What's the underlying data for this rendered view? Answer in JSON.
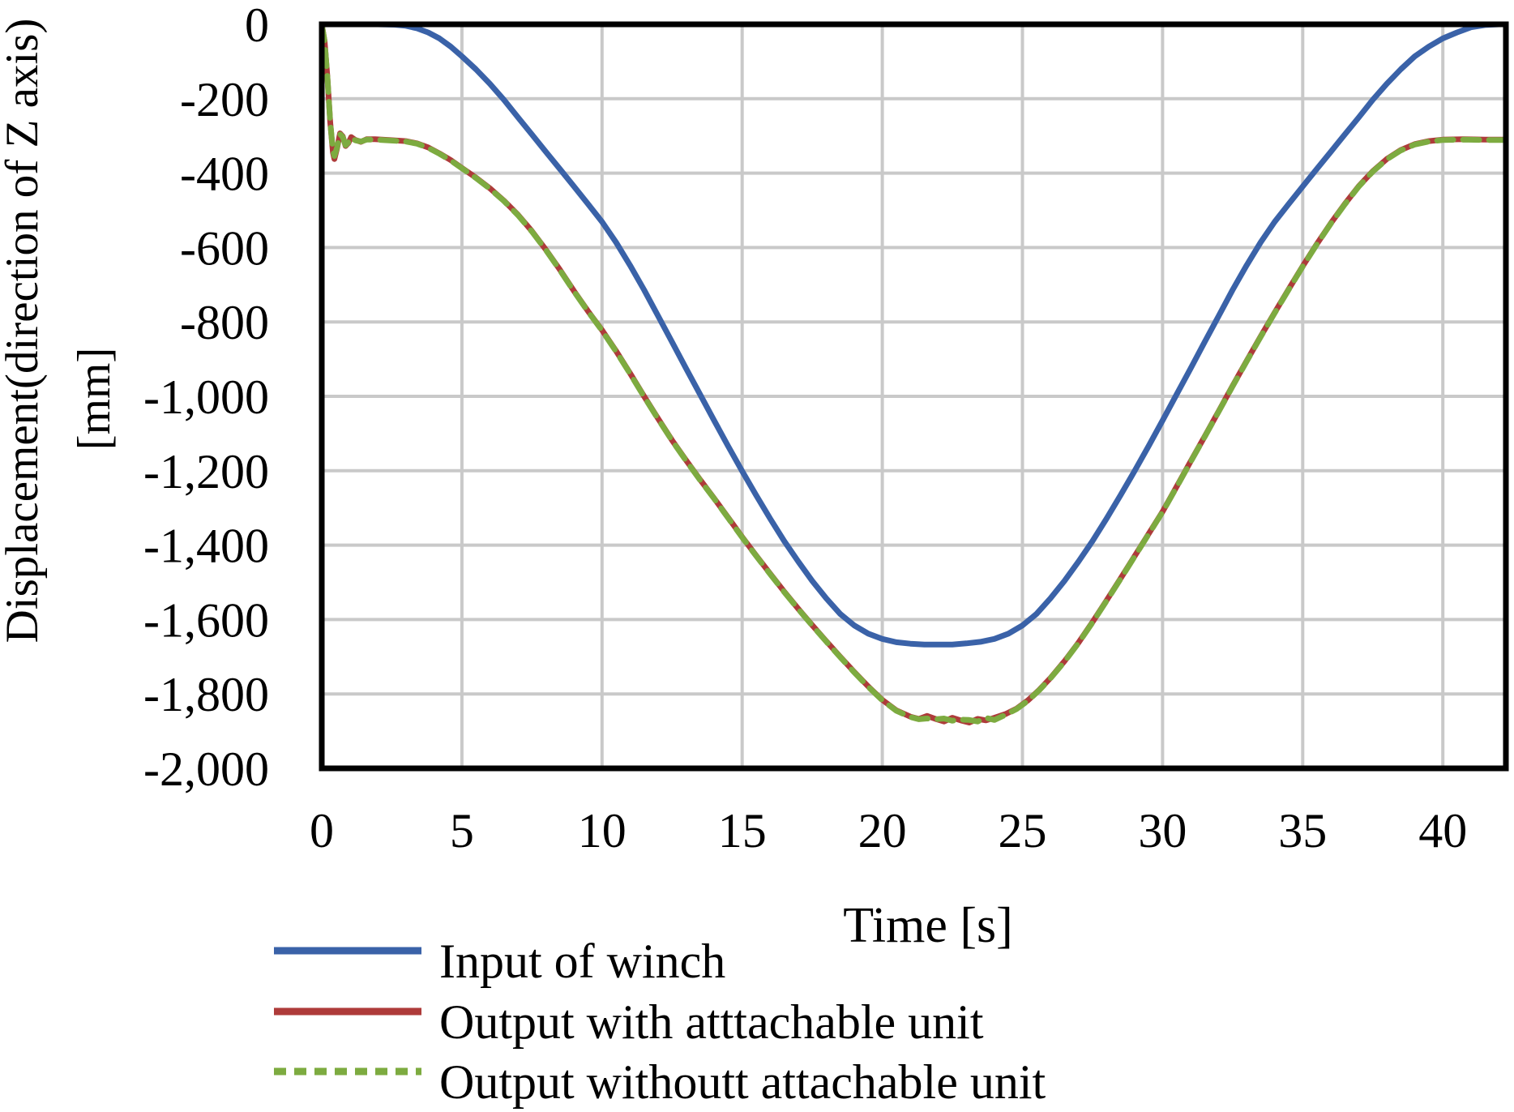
{
  "figure": {
    "background": "#ffffff",
    "grid_color": "#c9c9c9",
    "axis_color": "#000000",
    "text_color": "#000000"
  },
  "chart_data": {
    "type": "line",
    "title": "",
    "xlabel": "Time [s]",
    "ylabel_line1": "Displacement(direction of Z axis)",
    "ylabel_line2": "[mm]",
    "xlim": [
      0,
      42.25
    ],
    "ylim": [
      -2000,
      0
    ],
    "grid": true,
    "legend_position": "below-left",
    "x_ticks": [
      {
        "v": 0,
        "label": "0"
      },
      {
        "v": 5,
        "label": "5"
      },
      {
        "v": 10,
        "label": "10"
      },
      {
        "v": 15,
        "label": "15"
      },
      {
        "v": 20,
        "label": "20"
      },
      {
        "v": 25,
        "label": "25"
      },
      {
        "v": 30,
        "label": "30"
      },
      {
        "v": 35,
        "label": "35"
      },
      {
        "v": 40,
        "label": "40"
      }
    ],
    "y_ticks": [
      {
        "v": 0,
        "label": "0"
      },
      {
        "v": -200,
        "label": "-200"
      },
      {
        "v": -400,
        "label": "-400"
      },
      {
        "v": -600,
        "label": "-600"
      },
      {
        "v": -800,
        "label": "-800"
      },
      {
        "v": -1000,
        "label": "-1,000"
      },
      {
        "v": -1200,
        "label": "-1,200"
      },
      {
        "v": -1400,
        "label": "-1,400"
      },
      {
        "v": -1600,
        "label": "-1,600"
      },
      {
        "v": -1800,
        "label": "-1,800"
      },
      {
        "v": -2000,
        "label": "-2,000"
      }
    ],
    "series": [
      {
        "name": "Input of winch",
        "color": "#3a62a8",
        "dash": "solid",
        "points": [
          [
            0,
            0
          ],
          [
            2,
            0
          ],
          [
            2.6,
            -1
          ],
          [
            3,
            -4
          ],
          [
            3.4,
            -11
          ],
          [
            3.8,
            -22
          ],
          [
            4.2,
            -38
          ],
          [
            4.6,
            -60
          ],
          [
            5,
            -86
          ],
          [
            5.5,
            -121
          ],
          [
            6,
            -160
          ],
          [
            6.5,
            -203
          ],
          [
            7,
            -250
          ],
          [
            7.5,
            -296
          ],
          [
            8,
            -343
          ],
          [
            8.5,
            -389
          ],
          [
            9,
            -436
          ],
          [
            9.5,
            -483
          ],
          [
            10,
            -531
          ],
          [
            10.5,
            -586
          ],
          [
            11,
            -648
          ],
          [
            11.5,
            -714
          ],
          [
            12,
            -784
          ],
          [
            12.5,
            -854
          ],
          [
            13,
            -925
          ],
          [
            13.5,
            -995
          ],
          [
            14,
            -1065
          ],
          [
            14.5,
            -1134
          ],
          [
            15,
            -1201
          ],
          [
            15.5,
            -1266
          ],
          [
            16,
            -1329
          ],
          [
            16.5,
            -1389
          ],
          [
            17,
            -1444
          ],
          [
            17.5,
            -1496
          ],
          [
            18,
            -1543
          ],
          [
            18.5,
            -1585
          ],
          [
            19,
            -1616
          ],
          [
            19.5,
            -1638
          ],
          [
            20,
            -1652
          ],
          [
            20.5,
            -1661
          ],
          [
            21,
            -1665
          ],
          [
            21.5,
            -1667
          ],
          [
            22,
            -1667
          ],
          [
            22.5,
            -1667
          ],
          [
            23,
            -1664
          ],
          [
            23.5,
            -1660
          ],
          [
            24,
            -1652
          ],
          [
            24.5,
            -1638
          ],
          [
            25,
            -1616
          ],
          [
            25.5,
            -1585
          ],
          [
            26,
            -1543
          ],
          [
            26.5,
            -1496
          ],
          [
            27,
            -1444
          ],
          [
            27.5,
            -1389
          ],
          [
            28,
            -1329
          ],
          [
            28.5,
            -1266
          ],
          [
            29,
            -1201
          ],
          [
            29.5,
            -1134
          ],
          [
            30,
            -1065
          ],
          [
            30.5,
            -995
          ],
          [
            31,
            -925
          ],
          [
            31.5,
            -854
          ],
          [
            32,
            -784
          ],
          [
            32.5,
            -714
          ],
          [
            33,
            -648
          ],
          [
            33.5,
            -586
          ],
          [
            34,
            -531
          ],
          [
            34.5,
            -483
          ],
          [
            35,
            -436
          ],
          [
            35.5,
            -389
          ],
          [
            36,
            -343
          ],
          [
            36.5,
            -296
          ],
          [
            37,
            -250
          ],
          [
            37.5,
            -203
          ],
          [
            38,
            -160
          ],
          [
            38.5,
            -121
          ],
          [
            39,
            -86
          ],
          [
            39.5,
            -60
          ],
          [
            40,
            -38
          ],
          [
            40.5,
            -22
          ],
          [
            41,
            -8
          ],
          [
            41.5,
            -2
          ],
          [
            42,
            0
          ],
          [
            42.25,
            0
          ]
        ]
      },
      {
        "name": "Output with atttachable unit",
        "color": "#ae3b3a",
        "dash": "solid",
        "points": [
          [
            0,
            0
          ],
          [
            0.1,
            -45
          ],
          [
            0.2,
            -140
          ],
          [
            0.3,
            -262
          ],
          [
            0.4,
            -345
          ],
          [
            0.45,
            -362
          ],
          [
            0.55,
            -332
          ],
          [
            0.65,
            -293
          ],
          [
            0.75,
            -301
          ],
          [
            0.85,
            -327
          ],
          [
            0.95,
            -319
          ],
          [
            1.05,
            -303
          ],
          [
            1.2,
            -311
          ],
          [
            1.4,
            -316
          ],
          [
            1.6,
            -309
          ],
          [
            1.9,
            -309
          ],
          [
            2.4,
            -311
          ],
          [
            3,
            -314
          ],
          [
            3.4,
            -320
          ],
          [
            3.8,
            -331
          ],
          [
            4.2,
            -347
          ],
          [
            4.6,
            -365
          ],
          [
            5,
            -386
          ],
          [
            5.5,
            -412
          ],
          [
            6,
            -441
          ],
          [
            6.5,
            -474
          ],
          [
            7,
            -512
          ],
          [
            7.5,
            -556
          ],
          [
            8,
            -606
          ],
          [
            8.5,
            -660
          ],
          [
            9,
            -717
          ],
          [
            9.5,
            -771
          ],
          [
            10,
            -822
          ],
          [
            10.5,
            -878
          ],
          [
            11,
            -938
          ],
          [
            11.5,
            -1000
          ],
          [
            12,
            -1060
          ],
          [
            12.5,
            -1118
          ],
          [
            13,
            -1172
          ],
          [
            13.5,
            -1224
          ],
          [
            14,
            -1274
          ],
          [
            14.5,
            -1326
          ],
          [
            15,
            -1378
          ],
          [
            15.5,
            -1428
          ],
          [
            16,
            -1477
          ],
          [
            16.5,
            -1525
          ],
          [
            17,
            -1571
          ],
          [
            17.5,
            -1615
          ],
          [
            18,
            -1658
          ],
          [
            18.5,
            -1700
          ],
          [
            19,
            -1741
          ],
          [
            19.5,
            -1780
          ],
          [
            20,
            -1816
          ],
          [
            20.5,
            -1844
          ],
          [
            21,
            -1861
          ],
          [
            21.3,
            -1867
          ],
          [
            21.6,
            -1859
          ],
          [
            21.9,
            -1867
          ],
          [
            22.2,
            -1874
          ],
          [
            22.5,
            -1864
          ],
          [
            22.8,
            -1871
          ],
          [
            23.1,
            -1877
          ],
          [
            23.4,
            -1867
          ],
          [
            23.7,
            -1871
          ],
          [
            24,
            -1864
          ],
          [
            24.4,
            -1854
          ],
          [
            24.8,
            -1839
          ],
          [
            25.2,
            -1817
          ],
          [
            25.6,
            -1789
          ],
          [
            26,
            -1757
          ],
          [
            26.5,
            -1712
          ],
          [
            27,
            -1662
          ],
          [
            27.5,
            -1607
          ],
          [
            28,
            -1549
          ],
          [
            28.5,
            -1490
          ],
          [
            29,
            -1430
          ],
          [
            29.5,
            -1370
          ],
          [
            30,
            -1310
          ],
          [
            30.5,
            -1243
          ],
          [
            31,
            -1175
          ],
          [
            31.5,
            -1108
          ],
          [
            32,
            -1040
          ],
          [
            32.5,
            -972
          ],
          [
            33,
            -905
          ],
          [
            33.5,
            -839
          ],
          [
            34,
            -775
          ],
          [
            34.5,
            -712
          ],
          [
            35,
            -650
          ],
          [
            35.5,
            -591
          ],
          [
            36,
            -535
          ],
          [
            36.5,
            -483
          ],
          [
            37,
            -435
          ],
          [
            37.5,
            -395
          ],
          [
            38,
            -362
          ],
          [
            38.5,
            -338
          ],
          [
            39,
            -322
          ],
          [
            39.5,
            -314
          ],
          [
            40,
            -310
          ],
          [
            40.75,
            -309
          ],
          [
            41.5,
            -310
          ],
          [
            42.25,
            -310
          ]
        ]
      },
      {
        "name": "Output withoutt attachable unit",
        "color": "#7dab40",
        "dash": "dashed",
        "points": [
          [
            0,
            0
          ],
          [
            0.1,
            -45
          ],
          [
            0.2,
            -140
          ],
          [
            0.3,
            -262
          ],
          [
            0.4,
            -340
          ],
          [
            0.45,
            -354
          ],
          [
            0.55,
            -330
          ],
          [
            0.65,
            -295
          ],
          [
            0.75,
            -303
          ],
          [
            0.85,
            -325
          ],
          [
            0.95,
            -317
          ],
          [
            1.05,
            -305
          ],
          [
            1.2,
            -312
          ],
          [
            1.4,
            -315
          ],
          [
            1.6,
            -310
          ],
          [
            1.9,
            -310
          ],
          [
            2.4,
            -312
          ],
          [
            3,
            -315
          ],
          [
            3.4,
            -321
          ],
          [
            3.8,
            -332
          ],
          [
            4.2,
            -348
          ],
          [
            4.6,
            -366
          ],
          [
            5,
            -387
          ],
          [
            5.5,
            -413
          ],
          [
            6,
            -442
          ],
          [
            6.5,
            -475
          ],
          [
            7,
            -513
          ],
          [
            7.5,
            -557
          ],
          [
            8,
            -607
          ],
          [
            8.5,
            -661
          ],
          [
            9,
            -718
          ],
          [
            9.5,
            -772
          ],
          [
            10,
            -823
          ],
          [
            10.5,
            -879
          ],
          [
            11,
            -939
          ],
          [
            11.5,
            -1001
          ],
          [
            12,
            -1061
          ],
          [
            12.5,
            -1119
          ],
          [
            13,
            -1173
          ],
          [
            13.5,
            -1225
          ],
          [
            14,
            -1275
          ],
          [
            14.5,
            -1327
          ],
          [
            15,
            -1379
          ],
          [
            15.5,
            -1429
          ],
          [
            16,
            -1478
          ],
          [
            16.5,
            -1526
          ],
          [
            17,
            -1572
          ],
          [
            17.5,
            -1616
          ],
          [
            18,
            -1659
          ],
          [
            18.5,
            -1701
          ],
          [
            19,
            -1742
          ],
          [
            19.5,
            -1781
          ],
          [
            20,
            -1817
          ],
          [
            20.5,
            -1845
          ],
          [
            21,
            -1862
          ],
          [
            21.3,
            -1868
          ],
          [
            21.6,
            -1866
          ],
          [
            21.9,
            -1868
          ],
          [
            22.2,
            -1866
          ],
          [
            22.5,
            -1872
          ],
          [
            22.8,
            -1869
          ],
          [
            23.1,
            -1870
          ],
          [
            23.4,
            -1874
          ],
          [
            23.7,
            -1864
          ],
          [
            24,
            -1870
          ],
          [
            24.4,
            -1856
          ],
          [
            24.8,
            -1840
          ],
          [
            25.2,
            -1818
          ],
          [
            25.6,
            -1790
          ],
          [
            26,
            -1758
          ],
          [
            26.5,
            -1713
          ],
          [
            27,
            -1663
          ],
          [
            27.5,
            -1608
          ],
          [
            28,
            -1550
          ],
          [
            28.5,
            -1491
          ],
          [
            29,
            -1431
          ],
          [
            29.5,
            -1371
          ],
          [
            30,
            -1311
          ],
          [
            30.5,
            -1244
          ],
          [
            31,
            -1176
          ],
          [
            31.5,
            -1109
          ],
          [
            32,
            -1041
          ],
          [
            32.5,
            -973
          ],
          [
            33,
            -906
          ],
          [
            33.5,
            -840
          ],
          [
            34,
            -776
          ],
          [
            34.5,
            -713
          ],
          [
            35,
            -651
          ],
          [
            35.5,
            -592
          ],
          [
            36,
            -536
          ],
          [
            36.5,
            -484
          ],
          [
            37,
            -436
          ],
          [
            37.5,
            -396
          ],
          [
            38,
            -363
          ],
          [
            38.5,
            -339
          ],
          [
            39,
            -323
          ],
          [
            39.5,
            -315
          ],
          [
            40,
            -311
          ],
          [
            40.75,
            -310
          ],
          [
            41.5,
            -311
          ],
          [
            42.25,
            -311
          ]
        ]
      }
    ]
  }
}
